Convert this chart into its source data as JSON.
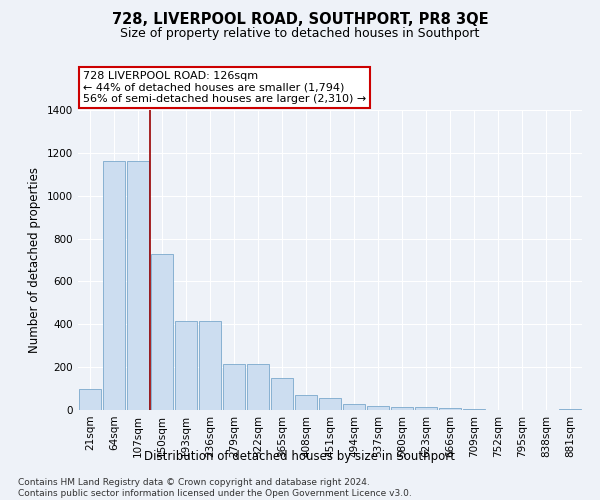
{
  "title": "728, LIVERPOOL ROAD, SOUTHPORT, PR8 3QE",
  "subtitle": "Size of property relative to detached houses in Southport",
  "xlabel": "Distribution of detached houses by size in Southport",
  "ylabel": "Number of detached properties",
  "categories": [
    "21sqm",
    "64sqm",
    "107sqm",
    "150sqm",
    "193sqm",
    "236sqm",
    "279sqm",
    "322sqm",
    "365sqm",
    "408sqm",
    "451sqm",
    "494sqm",
    "537sqm",
    "580sqm",
    "623sqm",
    "666sqm",
    "709sqm",
    "752sqm",
    "795sqm",
    "838sqm",
    "881sqm"
  ],
  "values": [
    100,
    1160,
    1160,
    730,
    415,
    415,
    215,
    215,
    150,
    70,
    55,
    30,
    20,
    15,
    15,
    10,
    5,
    0,
    0,
    0,
    5
  ],
  "bar_color": "#ccddf0",
  "bar_edge_color": "#7aa8cc",
  "vline_x": 2.5,
  "vline_color": "#990000",
  "annotation_text": "728 LIVERPOOL ROAD: 126sqm\n← 44% of detached houses are smaller (1,794)\n56% of semi-detached houses are larger (2,310) →",
  "annotation_box_color": "#ffffff",
  "annotation_box_edge": "#cc0000",
  "ylim": [
    0,
    1400
  ],
  "yticks": [
    0,
    200,
    400,
    600,
    800,
    1000,
    1200,
    1400
  ],
  "bg_color": "#eef2f8",
  "plot_bg_color": "#eef2f8",
  "footer": "Contains HM Land Registry data © Crown copyright and database right 2024.\nContains public sector information licensed under the Open Government Licence v3.0.",
  "title_fontsize": 10.5,
  "subtitle_fontsize": 9,
  "axis_label_fontsize": 8.5,
  "tick_fontsize": 7.5,
  "footer_fontsize": 6.5
}
